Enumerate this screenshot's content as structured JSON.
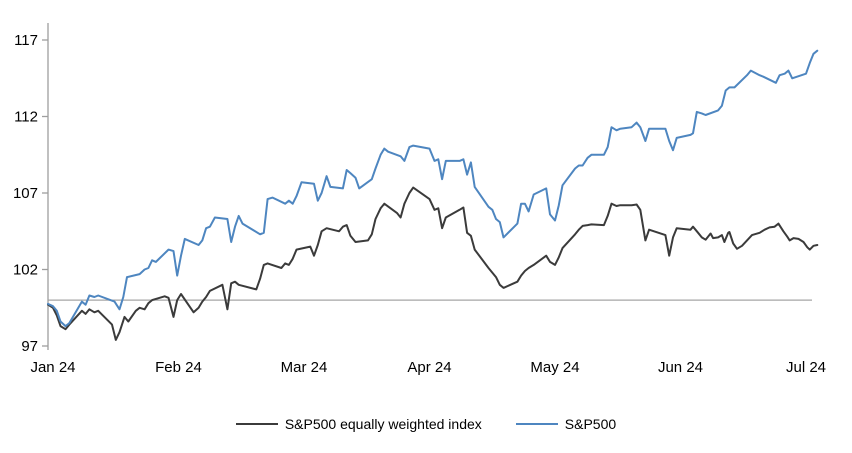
{
  "chart_data": {
    "type": "line",
    "title": "",
    "x_axis": {
      "unit": "months since Jan 2024",
      "tick_labels": [
        "Jan 24",
        "Feb 24",
        "Mar 24",
        "Apr 24",
        "May 24",
        "Jun 24",
        "Jul 24"
      ]
    },
    "y_axis": {
      "min": 97,
      "max": 117,
      "ticks": [
        97,
        102,
        107,
        112,
        117
      ]
    },
    "reference_line": {
      "value": 100
    },
    "grid": "off",
    "legend_position": "bottom",
    "colors": {
      "reference_line": "#a6a6a6",
      "axis": "#9e9e9e",
      "text": "#000000"
    },
    "series": [
      {
        "name": "S&P500 equally weighted index",
        "color": "#3b3b3b",
        "points": [
          [
            -0.04,
            99.7
          ],
          [
            0,
            99.5
          ],
          [
            0.03,
            99.0
          ],
          [
            0.06,
            98.3
          ],
          [
            0.1,
            98.1
          ],
          [
            0.13,
            98.4
          ],
          [
            0.23,
            99.3
          ],
          [
            0.26,
            99.1
          ],
          [
            0.29,
            99.4
          ],
          [
            0.33,
            99.2
          ],
          [
            0.36,
            99.3
          ],
          [
            0.47,
            98.4
          ],
          [
            0.5,
            97.4
          ],
          [
            0.53,
            97.9
          ],
          [
            0.57,
            98.9
          ],
          [
            0.6,
            98.6
          ],
          [
            0.66,
            99.3
          ],
          [
            0.69,
            99.5
          ],
          [
            0.73,
            99.4
          ],
          [
            0.76,
            99.8
          ],
          [
            0.79,
            100.0
          ],
          [
            0.89,
            100.25
          ],
          [
            0.92,
            100.15
          ],
          [
            0.96,
            98.9
          ],
          [
            0.99,
            100.0
          ],
          [
            1.02,
            100.4
          ],
          [
            1.12,
            99.2
          ],
          [
            1.16,
            99.5
          ],
          [
            1.19,
            99.9
          ],
          [
            1.22,
            100.2
          ],
          [
            1.25,
            100.6
          ],
          [
            1.35,
            101.0
          ],
          [
            1.39,
            99.4
          ],
          [
            1.42,
            101.1
          ],
          [
            1.45,
            101.2
          ],
          [
            1.48,
            101.0
          ],
          [
            1.62,
            100.7
          ],
          [
            1.65,
            101.4
          ],
          [
            1.68,
            102.3
          ],
          [
            1.71,
            102.4
          ],
          [
            1.82,
            102.1
          ],
          [
            1.85,
            102.4
          ],
          [
            1.88,
            102.3
          ],
          [
            1.91,
            102.7
          ],
          [
            1.94,
            103.3
          ],
          [
            2.05,
            103.5
          ],
          [
            2.08,
            102.9
          ],
          [
            2.11,
            103.6
          ],
          [
            2.14,
            104.5
          ],
          [
            2.18,
            104.7
          ],
          [
            2.28,
            104.5
          ],
          [
            2.31,
            104.8
          ],
          [
            2.34,
            104.9
          ],
          [
            2.37,
            104.2
          ],
          [
            2.41,
            103.8
          ],
          [
            2.51,
            103.9
          ],
          [
            2.54,
            104.3
          ],
          [
            2.57,
            105.3
          ],
          [
            2.61,
            106.0
          ],
          [
            2.64,
            106.3
          ],
          [
            2.74,
            105.7
          ],
          [
            2.77,
            105.4
          ],
          [
            2.8,
            106.3
          ],
          [
            2.84,
            107.0
          ],
          [
            2.87,
            107.35
          ],
          [
            3.0,
            106.6
          ],
          [
            3.04,
            105.9
          ],
          [
            3.07,
            106.0
          ],
          [
            3.1,
            104.7
          ],
          [
            3.13,
            105.4
          ],
          [
            3.24,
            105.9
          ],
          [
            3.27,
            106.05
          ],
          [
            3.3,
            104.4
          ],
          [
            3.33,
            104.2
          ],
          [
            3.36,
            103.3
          ],
          [
            3.47,
            102.1
          ],
          [
            3.5,
            101.8
          ],
          [
            3.53,
            101.5
          ],
          [
            3.56,
            101.0
          ],
          [
            3.59,
            100.8
          ],
          [
            3.7,
            101.2
          ],
          [
            3.73,
            101.6
          ],
          [
            3.76,
            101.9
          ],
          [
            3.79,
            102.1
          ],
          [
            3.83,
            102.3
          ],
          [
            3.93,
            102.9
          ],
          [
            3.96,
            102.5
          ],
          [
            4.0,
            102.3
          ],
          [
            4.03,
            102.8
          ],
          [
            4.06,
            103.4
          ],
          [
            4.16,
            104.3
          ],
          [
            4.19,
            104.6
          ],
          [
            4.22,
            104.85
          ],
          [
            4.26,
            104.9
          ],
          [
            4.29,
            104.95
          ],
          [
            4.39,
            104.9
          ],
          [
            4.42,
            105.5
          ],
          [
            4.45,
            106.3
          ],
          [
            4.49,
            106.15
          ],
          [
            4.52,
            106.2
          ],
          [
            4.61,
            106.2
          ],
          [
            4.65,
            106.25
          ],
          [
            4.68,
            105.9
          ],
          [
            4.72,
            103.9
          ],
          [
            4.75,
            104.6
          ],
          [
            4.88,
            104.25
          ],
          [
            4.91,
            102.9
          ],
          [
            4.94,
            104.1
          ],
          [
            4.97,
            104.7
          ],
          [
            5.08,
            104.6
          ],
          [
            5.1,
            104.8
          ],
          [
            5.14,
            104.4
          ],
          [
            5.17,
            104.1
          ],
          [
            5.2,
            103.95
          ],
          [
            5.24,
            104.35
          ],
          [
            5.26,
            104.05
          ],
          [
            5.3,
            104.1
          ],
          [
            5.33,
            104.25
          ],
          [
            5.35,
            103.8
          ],
          [
            5.38,
            104.4
          ],
          [
            5.39,
            104.45
          ],
          [
            5.42,
            103.7
          ],
          [
            5.45,
            103.35
          ],
          [
            5.49,
            103.55
          ],
          [
            5.53,
            103.9
          ],
          [
            5.57,
            104.25
          ],
          [
            5.59,
            104.3
          ],
          [
            5.63,
            104.4
          ],
          [
            5.67,
            104.6
          ],
          [
            5.71,
            104.75
          ],
          [
            5.75,
            104.8
          ],
          [
            5.78,
            105.0
          ],
          [
            5.82,
            104.5
          ],
          [
            5.85,
            104.15
          ],
          [
            5.87,
            103.9
          ],
          [
            5.9,
            104.05
          ],
          [
            5.94,
            104.0
          ],
          [
            5.98,
            103.8
          ],
          [
            6.01,
            103.45
          ],
          [
            6.03,
            103.3
          ],
          [
            6.06,
            103.55
          ],
          [
            6.09,
            103.6
          ]
        ]
      },
      {
        "name": "S&P500",
        "color": "#4e86c0",
        "points": [
          [
            -0.04,
            99.75
          ],
          [
            0,
            99.6
          ],
          [
            0.03,
            99.3
          ],
          [
            0.06,
            98.6
          ],
          [
            0.1,
            98.3
          ],
          [
            0.13,
            98.5
          ],
          [
            0.23,
            99.9
          ],
          [
            0.26,
            99.7
          ],
          [
            0.29,
            100.3
          ],
          [
            0.33,
            100.2
          ],
          [
            0.36,
            100.3
          ],
          [
            0.49,
            99.9
          ],
          [
            0.53,
            99.4
          ],
          [
            0.56,
            100.2
          ],
          [
            0.59,
            101.5
          ],
          [
            0.69,
            101.7
          ],
          [
            0.73,
            102.0
          ],
          [
            0.76,
            102.1
          ],
          [
            0.79,
            102.6
          ],
          [
            0.82,
            102.5
          ],
          [
            0.92,
            103.3
          ],
          [
            0.96,
            103.2
          ],
          [
            0.99,
            101.6
          ],
          [
            1.02,
            102.9
          ],
          [
            1.05,
            104.0
          ],
          [
            1.16,
            103.6
          ],
          [
            1.19,
            103.9
          ],
          [
            1.22,
            104.7
          ],
          [
            1.25,
            104.8
          ],
          [
            1.29,
            105.4
          ],
          [
            1.39,
            105.3
          ],
          [
            1.42,
            103.8
          ],
          [
            1.45,
            104.8
          ],
          [
            1.48,
            105.5
          ],
          [
            1.51,
            105.0
          ],
          [
            1.65,
            104.3
          ],
          [
            1.68,
            104.4
          ],
          [
            1.71,
            106.6
          ],
          [
            1.75,
            106.7
          ],
          [
            1.85,
            106.3
          ],
          [
            1.88,
            106.5
          ],
          [
            1.91,
            106.3
          ],
          [
            1.94,
            106.8
          ],
          [
            1.98,
            107.7
          ],
          [
            2.08,
            107.6
          ],
          [
            2.11,
            106.5
          ],
          [
            2.14,
            107.0
          ],
          [
            2.18,
            108.1
          ],
          [
            2.21,
            107.4
          ],
          [
            2.31,
            107.3
          ],
          [
            2.34,
            108.5
          ],
          [
            2.37,
            108.3
          ],
          [
            2.41,
            108.0
          ],
          [
            2.44,
            107.3
          ],
          [
            2.54,
            107.9
          ],
          [
            2.57,
            108.6
          ],
          [
            2.61,
            109.5
          ],
          [
            2.64,
            109.9
          ],
          [
            2.67,
            109.7
          ],
          [
            2.77,
            109.4
          ],
          [
            2.8,
            109.1
          ],
          [
            2.84,
            110.0
          ],
          [
            2.87,
            110.1
          ],
          [
            3.0,
            109.9
          ],
          [
            3.04,
            109.1
          ],
          [
            3.07,
            109.2
          ],
          [
            3.1,
            107.9
          ],
          [
            3.13,
            109.1
          ],
          [
            3.24,
            109.1
          ],
          [
            3.27,
            109.2
          ],
          [
            3.3,
            108.2
          ],
          [
            3.33,
            109.0
          ],
          [
            3.36,
            107.4
          ],
          [
            3.47,
            106.1
          ],
          [
            3.5,
            105.9
          ],
          [
            3.53,
            105.3
          ],
          [
            3.56,
            105.1
          ],
          [
            3.59,
            104.1
          ],
          [
            3.7,
            105.0
          ],
          [
            3.73,
            106.3
          ],
          [
            3.76,
            106.3
          ],
          [
            3.79,
            105.8
          ],
          [
            3.83,
            106.9
          ],
          [
            3.93,
            107.3
          ],
          [
            3.96,
            105.6
          ],
          [
            4.0,
            105.2
          ],
          [
            4.03,
            106.2
          ],
          [
            4.06,
            107.5
          ],
          [
            4.16,
            108.6
          ],
          [
            4.19,
            108.8
          ],
          [
            4.22,
            108.8
          ],
          [
            4.26,
            109.3
          ],
          [
            4.29,
            109.5
          ],
          [
            4.39,
            109.5
          ],
          [
            4.42,
            110.0
          ],
          [
            4.45,
            111.3
          ],
          [
            4.49,
            111.1
          ],
          [
            4.52,
            111.2
          ],
          [
            4.61,
            111.3
          ],
          [
            4.65,
            111.6
          ],
          [
            4.68,
            111.3
          ],
          [
            4.72,
            110.4
          ],
          [
            4.75,
            111.2
          ],
          [
            4.88,
            111.2
          ],
          [
            4.91,
            110.4
          ],
          [
            4.94,
            109.8
          ],
          [
            4.97,
            110.6
          ],
          [
            5.08,
            110.8
          ],
          [
            5.1,
            110.9
          ],
          [
            5.13,
            112.3
          ],
          [
            5.17,
            112.2
          ],
          [
            5.2,
            112.1
          ],
          [
            5.3,
            112.4
          ],
          [
            5.33,
            112.7
          ],
          [
            5.36,
            113.7
          ],
          [
            5.39,
            113.9
          ],
          [
            5.43,
            113.9
          ],
          [
            5.53,
            114.7
          ],
          [
            5.56,
            115.0
          ],
          [
            5.63,
            114.7
          ],
          [
            5.66,
            114.6
          ],
          [
            5.76,
            114.2
          ],
          [
            5.79,
            114.7
          ],
          [
            5.83,
            114.8
          ],
          [
            5.86,
            115.0
          ],
          [
            5.89,
            114.5
          ],
          [
            6.0,
            114.8
          ],
          [
            6.03,
            115.5
          ],
          [
            6.06,
            116.1
          ],
          [
            6.09,
            116.3
          ]
        ]
      }
    ]
  }
}
